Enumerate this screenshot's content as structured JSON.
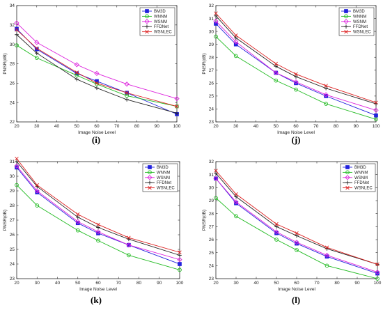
{
  "chart_data": [
    {
      "type": "line",
      "panel_label": "(i)",
      "x": [
        20,
        30,
        50,
        60,
        75,
        100
      ],
      "xlabel": "Image Noise Level",
      "ylabel": "PNSR(dB)",
      "xlim": [
        20,
        100
      ],
      "ylim": [
        22,
        34
      ],
      "xticks": [
        20,
        30,
        40,
        50,
        60,
        70,
        80,
        90,
        100
      ],
      "yticks": [
        22,
        24,
        26,
        28,
        30,
        32,
        34
      ],
      "legend_position": "top-right",
      "grid": false,
      "series": [
        {
          "name": "BM3D",
          "color": "#2222dd",
          "marker": "square",
          "values": [
            31.6,
            29.5,
            27.0,
            26.2,
            25.0,
            22.8
          ]
        },
        {
          "name": "WNNM",
          "color": "#22bb22",
          "marker": "circle",
          "values": [
            29.9,
            28.6,
            26.8,
            25.9,
            24.7,
            23.6
          ]
        },
        {
          "name": "WSNM",
          "color": "#dd22dd",
          "marker": "diamond",
          "values": [
            32.2,
            30.2,
            27.9,
            27.0,
            25.9,
            24.4
          ]
        },
        {
          "name": "FFDNet",
          "color": "#222222",
          "marker": "plus",
          "values": [
            31.0,
            29.1,
            26.4,
            25.5,
            24.3,
            22.9
          ]
        },
        {
          "name": "WSNLEC",
          "color": "#dd2222",
          "marker": "x",
          "values": [
            31.5,
            29.6,
            27.1,
            26.0,
            25.0,
            23.6
          ]
        }
      ]
    },
    {
      "type": "line",
      "panel_label": "(j)",
      "x": [
        20,
        30,
        50,
        60,
        75,
        100
      ],
      "xlabel": "Image Noise Level",
      "ylabel": "PNSR(dB)",
      "xlim": [
        20,
        100
      ],
      "ylim": [
        23,
        32
      ],
      "xticks": [
        20,
        30,
        40,
        50,
        60,
        70,
        80,
        90,
        100
      ],
      "yticks": [
        23,
        24,
        25,
        26,
        27,
        28,
        29,
        30,
        31,
        32
      ],
      "legend_position": "top-right",
      "grid": false,
      "series": [
        {
          "name": "BM3D",
          "color": "#2222dd",
          "marker": "square",
          "values": [
            30.6,
            29.0,
            26.8,
            26.0,
            25.0,
            23.5
          ]
        },
        {
          "name": "WNNM",
          "color": "#22bb22",
          "marker": "circle",
          "values": [
            29.6,
            28.1,
            26.2,
            25.5,
            24.4,
            23.2
          ]
        },
        {
          "name": "WSNM",
          "color": "#dd22dd",
          "marker": "diamond",
          "values": [
            30.8,
            29.2,
            26.8,
            26.1,
            25.1,
            23.9
          ]
        },
        {
          "name": "FFDNet",
          "color": "#222222",
          "marker": "plus",
          "values": [
            31.2,
            29.5,
            27.3,
            26.5,
            25.6,
            24.4
          ]
        },
        {
          "name": "WSNLEC",
          "color": "#dd2222",
          "marker": "x",
          "values": [
            31.4,
            29.7,
            27.5,
            26.7,
            25.8,
            24.5
          ]
        }
      ]
    },
    {
      "type": "line",
      "panel_label": "(k)",
      "x": [
        20,
        30,
        50,
        60,
        75,
        100
      ],
      "xlabel": "Image Noise Level",
      "ylabel": "PNSR(dB)",
      "xlim": [
        20,
        100
      ],
      "ylim": [
        23,
        31
      ],
      "xticks": [
        20,
        30,
        40,
        50,
        60,
        70,
        80,
        90,
        100
      ],
      "yticks": [
        23,
        24,
        25,
        26,
        27,
        28,
        29,
        30,
        31
      ],
      "legend_position": "top-right",
      "grid": false,
      "series": [
        {
          "name": "BM3D",
          "color": "#2222dd",
          "marker": "square",
          "values": [
            30.6,
            28.9,
            26.8,
            26.1,
            25.3,
            24.0
          ]
        },
        {
          "name": "WNNM",
          "color": "#22bb22",
          "marker": "circle",
          "values": [
            29.4,
            28.0,
            26.3,
            25.6,
            24.6,
            23.6
          ]
        },
        {
          "name": "WSNM",
          "color": "#dd22dd",
          "marker": "diamond",
          "values": [
            30.7,
            29.0,
            26.9,
            26.2,
            25.3,
            24.3
          ]
        },
        {
          "name": "FFDNet",
          "color": "#222222",
          "marker": "plus",
          "values": [
            31.0,
            29.3,
            27.2,
            26.5,
            25.7,
            24.6
          ]
        },
        {
          "name": "WSNLEC",
          "color": "#dd2222",
          "marker": "x",
          "values": [
            31.2,
            29.4,
            27.4,
            26.7,
            25.8,
            24.8
          ]
        }
      ]
    },
    {
      "type": "line",
      "panel_label": "(l)",
      "x": [
        20,
        30,
        50,
        60,
        75,
        100
      ],
      "xlabel": "Image Noise Level",
      "ylabel": "PNSR(dB)",
      "xlim": [
        20,
        100
      ],
      "ylim": [
        23,
        32
      ],
      "xticks": [
        20,
        30,
        40,
        50,
        60,
        70,
        80,
        90,
        100
      ],
      "yticks": [
        23,
        24,
        25,
        26,
        27,
        28,
        29,
        30,
        31,
        32
      ],
      "legend_position": "top-right",
      "grid": false,
      "series": [
        {
          "name": "BM3D",
          "color": "#2222dd",
          "marker": "square",
          "values": [
            30.7,
            28.8,
            26.5,
            25.7,
            24.7,
            23.4
          ]
        },
        {
          "name": "WNNM",
          "color": "#22bb22",
          "marker": "circle",
          "values": [
            29.2,
            27.8,
            26.0,
            25.2,
            24.0,
            23.0
          ]
        },
        {
          "name": "WSNM",
          "color": "#dd22dd",
          "marker": "diamond",
          "values": [
            30.7,
            28.9,
            26.6,
            25.8,
            24.8,
            23.5
          ]
        },
        {
          "name": "FFDNet",
          "color": "#222222",
          "marker": "plus",
          "values": [
            31.1,
            29.3,
            27.0,
            26.3,
            25.3,
            24.1
          ]
        },
        {
          "name": "WSNLEC",
          "color": "#dd2222",
          "marker": "x",
          "values": [
            31.3,
            29.5,
            27.2,
            26.5,
            25.4,
            24.1
          ]
        }
      ]
    }
  ]
}
